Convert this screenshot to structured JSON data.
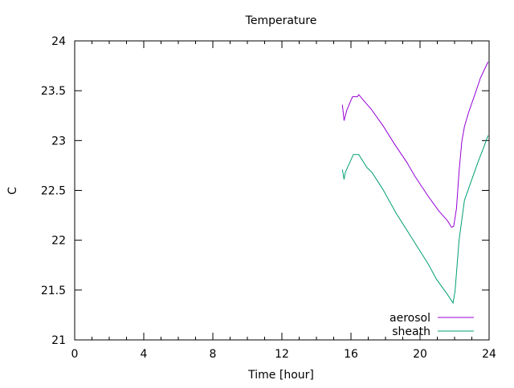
{
  "chart_data": {
    "type": "line",
    "title": "Temperature",
    "xlabel": "Time [hour]",
    "ylabel": "C",
    "xlim": [
      0,
      24
    ],
    "ylim": [
      21,
      24
    ],
    "xticks": [
      0,
      4,
      8,
      12,
      16,
      20,
      24
    ],
    "xtick_labels": [
      "0",
      "4",
      "8",
      "12",
      "16",
      "20",
      "24"
    ],
    "yticks": [
      21,
      21.5,
      22,
      22.5,
      23,
      23.5,
      24
    ],
    "ytick_labels": [
      "21",
      "21.5",
      "22",
      "22.5",
      "23",
      "23.5",
      "24"
    ],
    "grid": false,
    "legend_position": "bottom-right",
    "series": [
      {
        "name": "aerosol",
        "color": "#9400d3",
        "x": [
          15.5,
          15.6,
          15.75,
          16.09,
          16.37,
          16.45,
          16.84,
          17.15,
          17.85,
          18.54,
          19.24,
          19.71,
          20.48,
          21.1,
          21.57,
          21.83,
          21.95,
          22.11,
          22.26,
          22.42,
          22.57,
          22.81,
          23.19,
          23.5,
          23.94
        ],
        "y": [
          23.36,
          23.2,
          23.3,
          23.44,
          23.44,
          23.46,
          23.38,
          23.32,
          23.15,
          22.96,
          22.78,
          22.64,
          22.44,
          22.29,
          22.2,
          22.13,
          22.14,
          22.32,
          22.69,
          22.99,
          23.14,
          23.28,
          23.47,
          23.63,
          23.79
        ]
      },
      {
        "name": "sheath",
        "color": "#009e73",
        "x": [
          15.5,
          15.6,
          15.67,
          16.14,
          16.45,
          16.92,
          17.22,
          17.85,
          18.62,
          19.24,
          19.86,
          20.48,
          20.95,
          21.57,
          21.91,
          22.03,
          22.26,
          22.57,
          22.96,
          23.35,
          23.66,
          23.94
        ],
        "y": [
          22.71,
          22.61,
          22.68,
          22.86,
          22.86,
          22.73,
          22.68,
          22.51,
          22.27,
          22.1,
          21.93,
          21.76,
          21.61,
          21.46,
          21.37,
          21.49,
          22.0,
          22.4,
          22.59,
          22.78,
          22.92,
          23.05
        ]
      }
    ]
  }
}
